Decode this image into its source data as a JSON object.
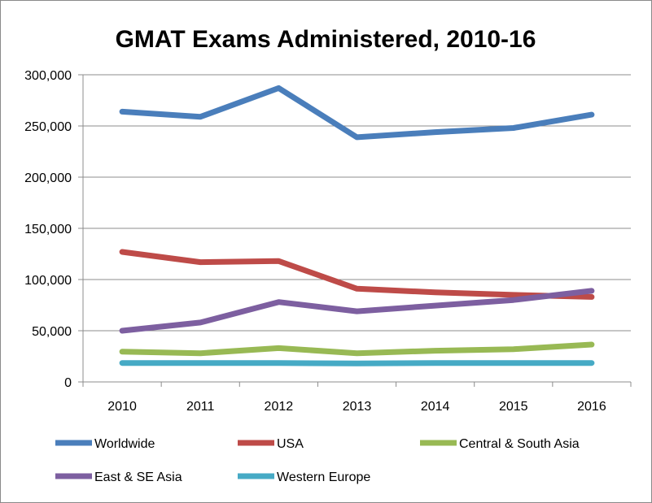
{
  "chart_data": {
    "type": "line",
    "title": "GMAT Exams Administered, 2010-16",
    "xlabel": "",
    "ylabel": "",
    "categories": [
      "2010",
      "2011",
      "2012",
      "2013",
      "2014",
      "2015",
      "2016"
    ],
    "ylim": [
      0,
      300000
    ],
    "yticks": [
      0,
      50000,
      100000,
      150000,
      200000,
      250000,
      300000
    ],
    "ytick_labels": [
      "0",
      "50,000",
      "100,000",
      "150,000",
      "200,000",
      "250,000",
      "300,000"
    ],
    "grid": true,
    "legend_position": "bottom",
    "series": [
      {
        "name": "Worldwide",
        "color": "#4a7ebb",
        "values": [
          264000,
          259000,
          287000,
          239000,
          244000,
          248000,
          261000
        ]
      },
      {
        "name": "USA",
        "color": "#be4b48",
        "values": [
          127000,
          117000,
          118000,
          91000,
          87500,
          85000,
          83000
        ]
      },
      {
        "name": "Central & South Asia",
        "color": "#98b954",
        "values": [
          29500,
          28000,
          33000,
          28000,
          30500,
          32000,
          36500
        ]
      },
      {
        "name": "East & SE Asia",
        "color": "#7d5fa0",
        "values": [
          50000,
          58000,
          78000,
          69000,
          74500,
          80000,
          89000
        ]
      },
      {
        "name": "Western Europe",
        "color": "#46aac5",
        "values": [
          18500,
          18500,
          18500,
          18000,
          18500,
          18500,
          18500
        ]
      }
    ]
  }
}
